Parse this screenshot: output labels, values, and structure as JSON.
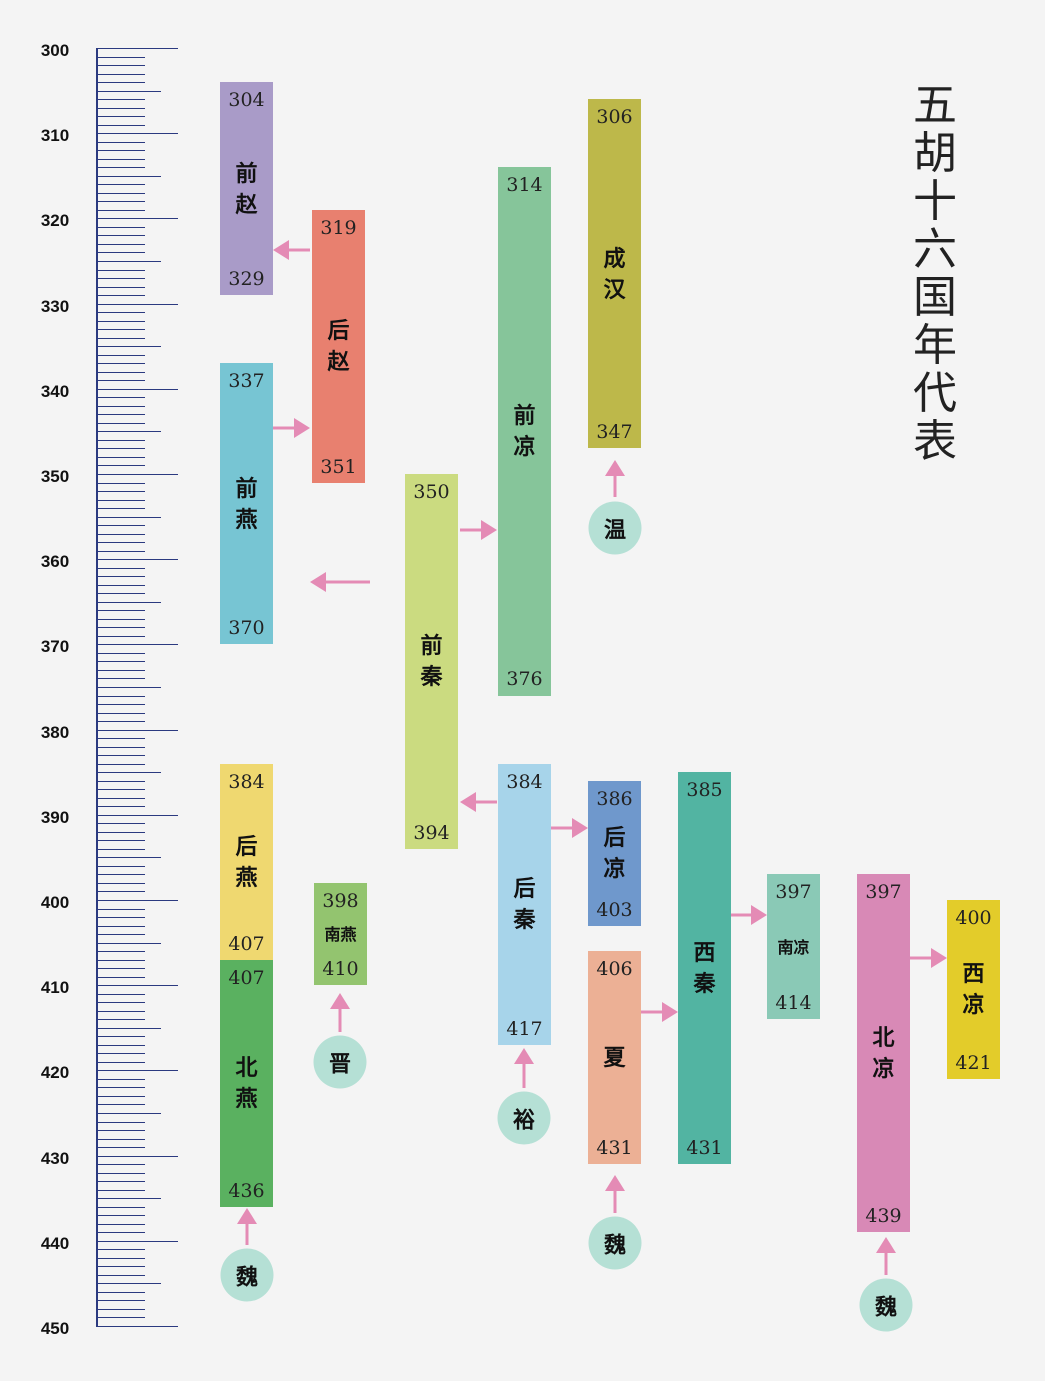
{
  "title": "五胡十六国年代表",
  "axis": {
    "min": 300,
    "max": 450,
    "label_step": 10,
    "minor_step": 1,
    "medium_step": 5,
    "labels": [
      "300",
      "310",
      "320",
      "330",
      "340",
      "350",
      "360",
      "370",
      "380",
      "390",
      "400",
      "410",
      "420",
      "430",
      "440",
      "450"
    ]
  },
  "arrow_color": "#e48bb5",
  "circle_color": "#b5e0d5",
  "kingdoms": [
    {
      "name": "前赵",
      "start": "304",
      "end": "329",
      "color": "#a99bc8"
    },
    {
      "name": "后赵",
      "start": "319",
      "end": "351",
      "color": "#e8806f"
    },
    {
      "name": "前燕",
      "start": "337",
      "end": "370",
      "color": "#77c5d3"
    },
    {
      "name": "前秦",
      "start": "350",
      "end": "394",
      "color": "#cbdb80"
    },
    {
      "name": "前凉",
      "start": "314",
      "end": "376",
      "color": "#86c59a"
    },
    {
      "name": "成汉",
      "start": "306",
      "end": "347",
      "color": "#bdb84a"
    },
    {
      "name": "后燕",
      "start": "384",
      "end": "407",
      "color": "#efd870"
    },
    {
      "name": "北燕",
      "start": "407",
      "end": "436",
      "color": "#5ab160"
    },
    {
      "name": "南燕",
      "start": "398",
      "end": "410",
      "color": "#93c46f"
    },
    {
      "name": "后秦",
      "start": "384",
      "end": "417",
      "color": "#a7d4ea"
    },
    {
      "name": "后凉",
      "start": "386",
      "end": "403",
      "color": "#6f98cc"
    },
    {
      "name": "夏",
      "start": "406",
      "end": "431",
      "color": "#ecb095"
    },
    {
      "name": "西秦",
      "start": "385",
      "end": "431",
      "color": "#52b4a2"
    },
    {
      "name": "南凉",
      "start": "397",
      "end": "414",
      "color": "#8ac9b6"
    },
    {
      "name": "北凉",
      "start": "397",
      "end": "439",
      "color": "#d889b6"
    },
    {
      "name": "西凉",
      "start": "400",
      "end": "421",
      "color": "#e3cc2a"
    }
  ],
  "conquerors": [
    {
      "name": "温"
    },
    {
      "name": "晋"
    },
    {
      "name": "裕"
    },
    {
      "name": "魏"
    },
    {
      "name": "魏"
    },
    {
      "name": "魏"
    }
  ]
}
